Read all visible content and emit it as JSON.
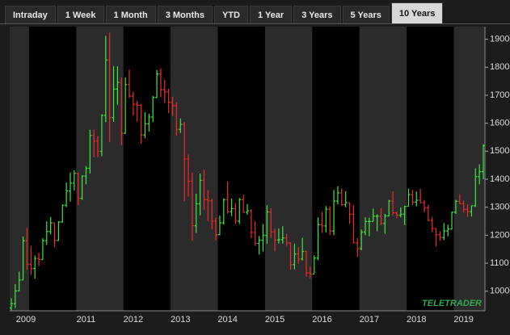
{
  "tabs": [
    "Intraday",
    "1 Week",
    "1 Month",
    "3 Months",
    "YTD",
    "1 Year",
    "3 Years",
    "5 Years",
    "10 Years"
  ],
  "selected_tab": 8,
  "chart_data": {
    "type": "ohlc",
    "watermark": "TELETRADER",
    "up_color": "#3ee83e",
    "down_color": "#ee2b2b",
    "band_colors": [
      "#2b2b2b",
      "#000000"
    ],
    "categories": [
      null,
      null,
      null,
      "2009",
      null,
      null,
      null,
      null,
      null,
      null,
      null,
      null,
      null,
      null,
      null,
      null,
      null,
      null,
      null,
      "2011",
      null,
      null,
      null,
      null,
      null,
      null,
      null,
      null,
      null,
      null,
      null,
      "2012",
      null,
      null,
      null,
      null,
      null,
      null,
      null,
      null,
      null,
      null,
      null,
      "2013",
      null,
      null,
      null,
      null,
      null,
      null,
      null,
      null,
      null,
      null,
      null,
      "2014",
      null,
      null,
      null,
      null,
      null,
      null,
      null,
      null,
      null,
      null,
      null,
      "2015",
      null,
      null,
      null,
      null,
      null,
      null,
      null,
      null,
      null,
      null,
      null,
      "2016",
      null,
      null,
      null,
      null,
      null,
      null,
      null,
      null,
      null,
      null,
      null,
      "2017",
      null,
      null,
      null,
      null,
      null,
      null,
      null,
      null,
      null,
      null,
      null,
      "2018",
      null,
      null,
      null,
      null,
      null,
      null,
      null,
      null,
      null,
      null,
      null,
      "2019",
      null,
      null,
      null,
      null,
      null
    ],
    "open": [
      940,
      955,
      1001,
      1040,
      1180,
      1096,
      1081,
      1117,
      1113,
      1180,
      1213,
      1244,
      1181,
      1247,
      1307,
      1358,
      1386,
      1421,
      1332,
      1411,
      1439,
      1556,
      1536,
      1500,
      1628,
      1826,
      1620,
      1722,
      1746,
      1564,
      1738,
      1697,
      1668,
      1664,
      1558,
      1598,
      1622,
      1692,
      1776,
      1719,
      1712,
      1675,
      1663,
      1578,
      1596,
      1472,
      1393,
      1234,
      1312,
      1396,
      1327,
      1323,
      1250,
      1202,
      1244,
      1326,
      1284,
      1295,
      1250,
      1327,
      1282,
      1287,
      1210,
      1171,
      1182,
      1199,
      1283,
      1212,
      1183,
      1184,
      1190,
      1172,
      1095,
      1133,
      1115,
      1142,
      1065,
      1061,
      1118,
      1238,
      1233,
      1293,
      1215,
      1322,
      1351,
      1309,
      1316,
      1275,
      1173,
      1152,
      1211,
      1249,
      1249,
      1268,
      1268,
      1242,
      1269,
      1322,
      1280,
      1271,
      1275,
      1303,
      1345,
      1318,
      1325,
      1316,
      1298,
      1253,
      1224,
      1202,
      1192,
      1215,
      1222,
      1282,
      1321,
      1313,
      1292,
      1284,
      1305,
      1409,
      1427
    ],
    "high": [
      975,
      1025,
      1070,
      1195,
      1226,
      1162,
      1127,
      1137,
      1189,
      1250,
      1265,
      1245,
      1250,
      1310,
      1388,
      1424,
      1432,
      1424,
      1414,
      1447,
      1577,
      1577,
      1554,
      1632,
      1912,
      1923,
      1804,
      1804,
      1764,
      1764,
      1791,
      1712,
      1680,
      1668,
      1639,
      1634,
      1697,
      1790,
      1796,
      1755,
      1723,
      1695,
      1675,
      1617,
      1605,
      1488,
      1424,
      1348,
      1420,
      1434,
      1361,
      1330,
      1262,
      1270,
      1332,
      1392,
      1331,
      1315,
      1333,
      1345,
      1311,
      1293,
      1250,
      1197,
      1240,
      1307,
      1296,
      1224,
      1224,
      1232,
      1205,
      1175,
      1170,
      1157,
      1191,
      1145,
      1088,
      1128,
      1264,
      1283,
      1304,
      1303,
      1362,
      1375,
      1367,
      1357,
      1317,
      1307,
      1190,
      1220,
      1264,
      1263,
      1295,
      1275,
      1297,
      1276,
      1326,
      1357,
      1284,
      1299,
      1305,
      1366,
      1362,
      1356,
      1366,
      1326,
      1309,
      1265,
      1225,
      1214,
      1243,
      1238,
      1284,
      1326,
      1347,
      1324,
      1310,
      1306,
      1439,
      1453,
      1525
    ],
    "low": [
      932,
      940,
      1000,
      1040,
      1076,
      1058,
      1045,
      1090,
      1113,
      1165,
      1203,
      1157,
      1180,
      1245,
      1300,
      1320,
      1360,
      1308,
      1326,
      1382,
      1420,
      1478,
      1478,
      1482,
      1604,
      1532,
      1605,
      1666,
      1522,
      1562,
      1690,
      1628,
      1605,
      1527,
      1546,
      1570,
      1604,
      1690,
      1693,
      1672,
      1636,
      1626,
      1555,
      1565,
      1321,
      1338,
      1180,
      1208,
      1271,
      1291,
      1251,
      1221,
      1182,
      1200,
      1238,
      1277,
      1268,
      1240,
      1240,
      1280,
      1273,
      1190,
      1162,
      1131,
      1142,
      1170,
      1190,
      1142,
      1170,
      1170,
      1162,
      1077,
      1078,
      1098,
      1110,
      1052,
      1046,
      1062,
      1110,
      1208,
      1210,
      1200,
      1200,
      1310,
      1305,
      1300,
      1241,
      1171,
      1122,
      1146,
      1200,
      1196,
      1250,
      1214,
      1236,
      1205,
      1267,
      1271,
      1261,
      1264,
      1236,
      1303,
      1307,
      1303,
      1315,
      1282,
      1250,
      1211,
      1160,
      1180,
      1183,
      1196,
      1221,
      1276,
      1311,
      1281,
      1266,
      1267,
      1301,
      1382,
      1400
    ],
    "close": [
      955,
      1001,
      1040,
      1180,
      1096,
      1081,
      1117,
      1113,
      1180,
      1213,
      1244,
      1181,
      1247,
      1307,
      1358,
      1386,
      1421,
      1332,
      1411,
      1439,
      1556,
      1536,
      1500,
      1628,
      1826,
      1620,
      1722,
      1746,
      1564,
      1738,
      1697,
      1668,
      1664,
      1558,
      1598,
      1622,
      1692,
      1776,
      1719,
      1712,
      1675,
      1663,
      1578,
      1596,
      1472,
      1393,
      1234,
      1312,
      1396,
      1327,
      1323,
      1250,
      1202,
      1244,
      1326,
      1284,
      1295,
      1250,
      1327,
      1282,
      1287,
      1210,
      1171,
      1182,
      1199,
      1283,
      1212,
      1183,
      1184,
      1190,
      1172,
      1095,
      1133,
      1115,
      1142,
      1065,
      1061,
      1118,
      1238,
      1233,
      1293,
      1215,
      1322,
      1351,
      1309,
      1316,
      1275,
      1173,
      1152,
      1211,
      1249,
      1249,
      1268,
      1268,
      1242,
      1269,
      1322,
      1280,
      1271,
      1275,
      1303,
      1345,
      1318,
      1325,
      1316,
      1298,
      1253,
      1224,
      1202,
      1192,
      1215,
      1222,
      1282,
      1321,
      1313,
      1292,
      1284,
      1305,
      1409,
      1427,
      1520
    ],
    "ylim": [
      930,
      1945
    ],
    "yticks": [
      1000,
      1100,
      1200,
      1300,
      1400,
      1500,
      1600,
      1700,
      1800,
      1900
    ]
  }
}
